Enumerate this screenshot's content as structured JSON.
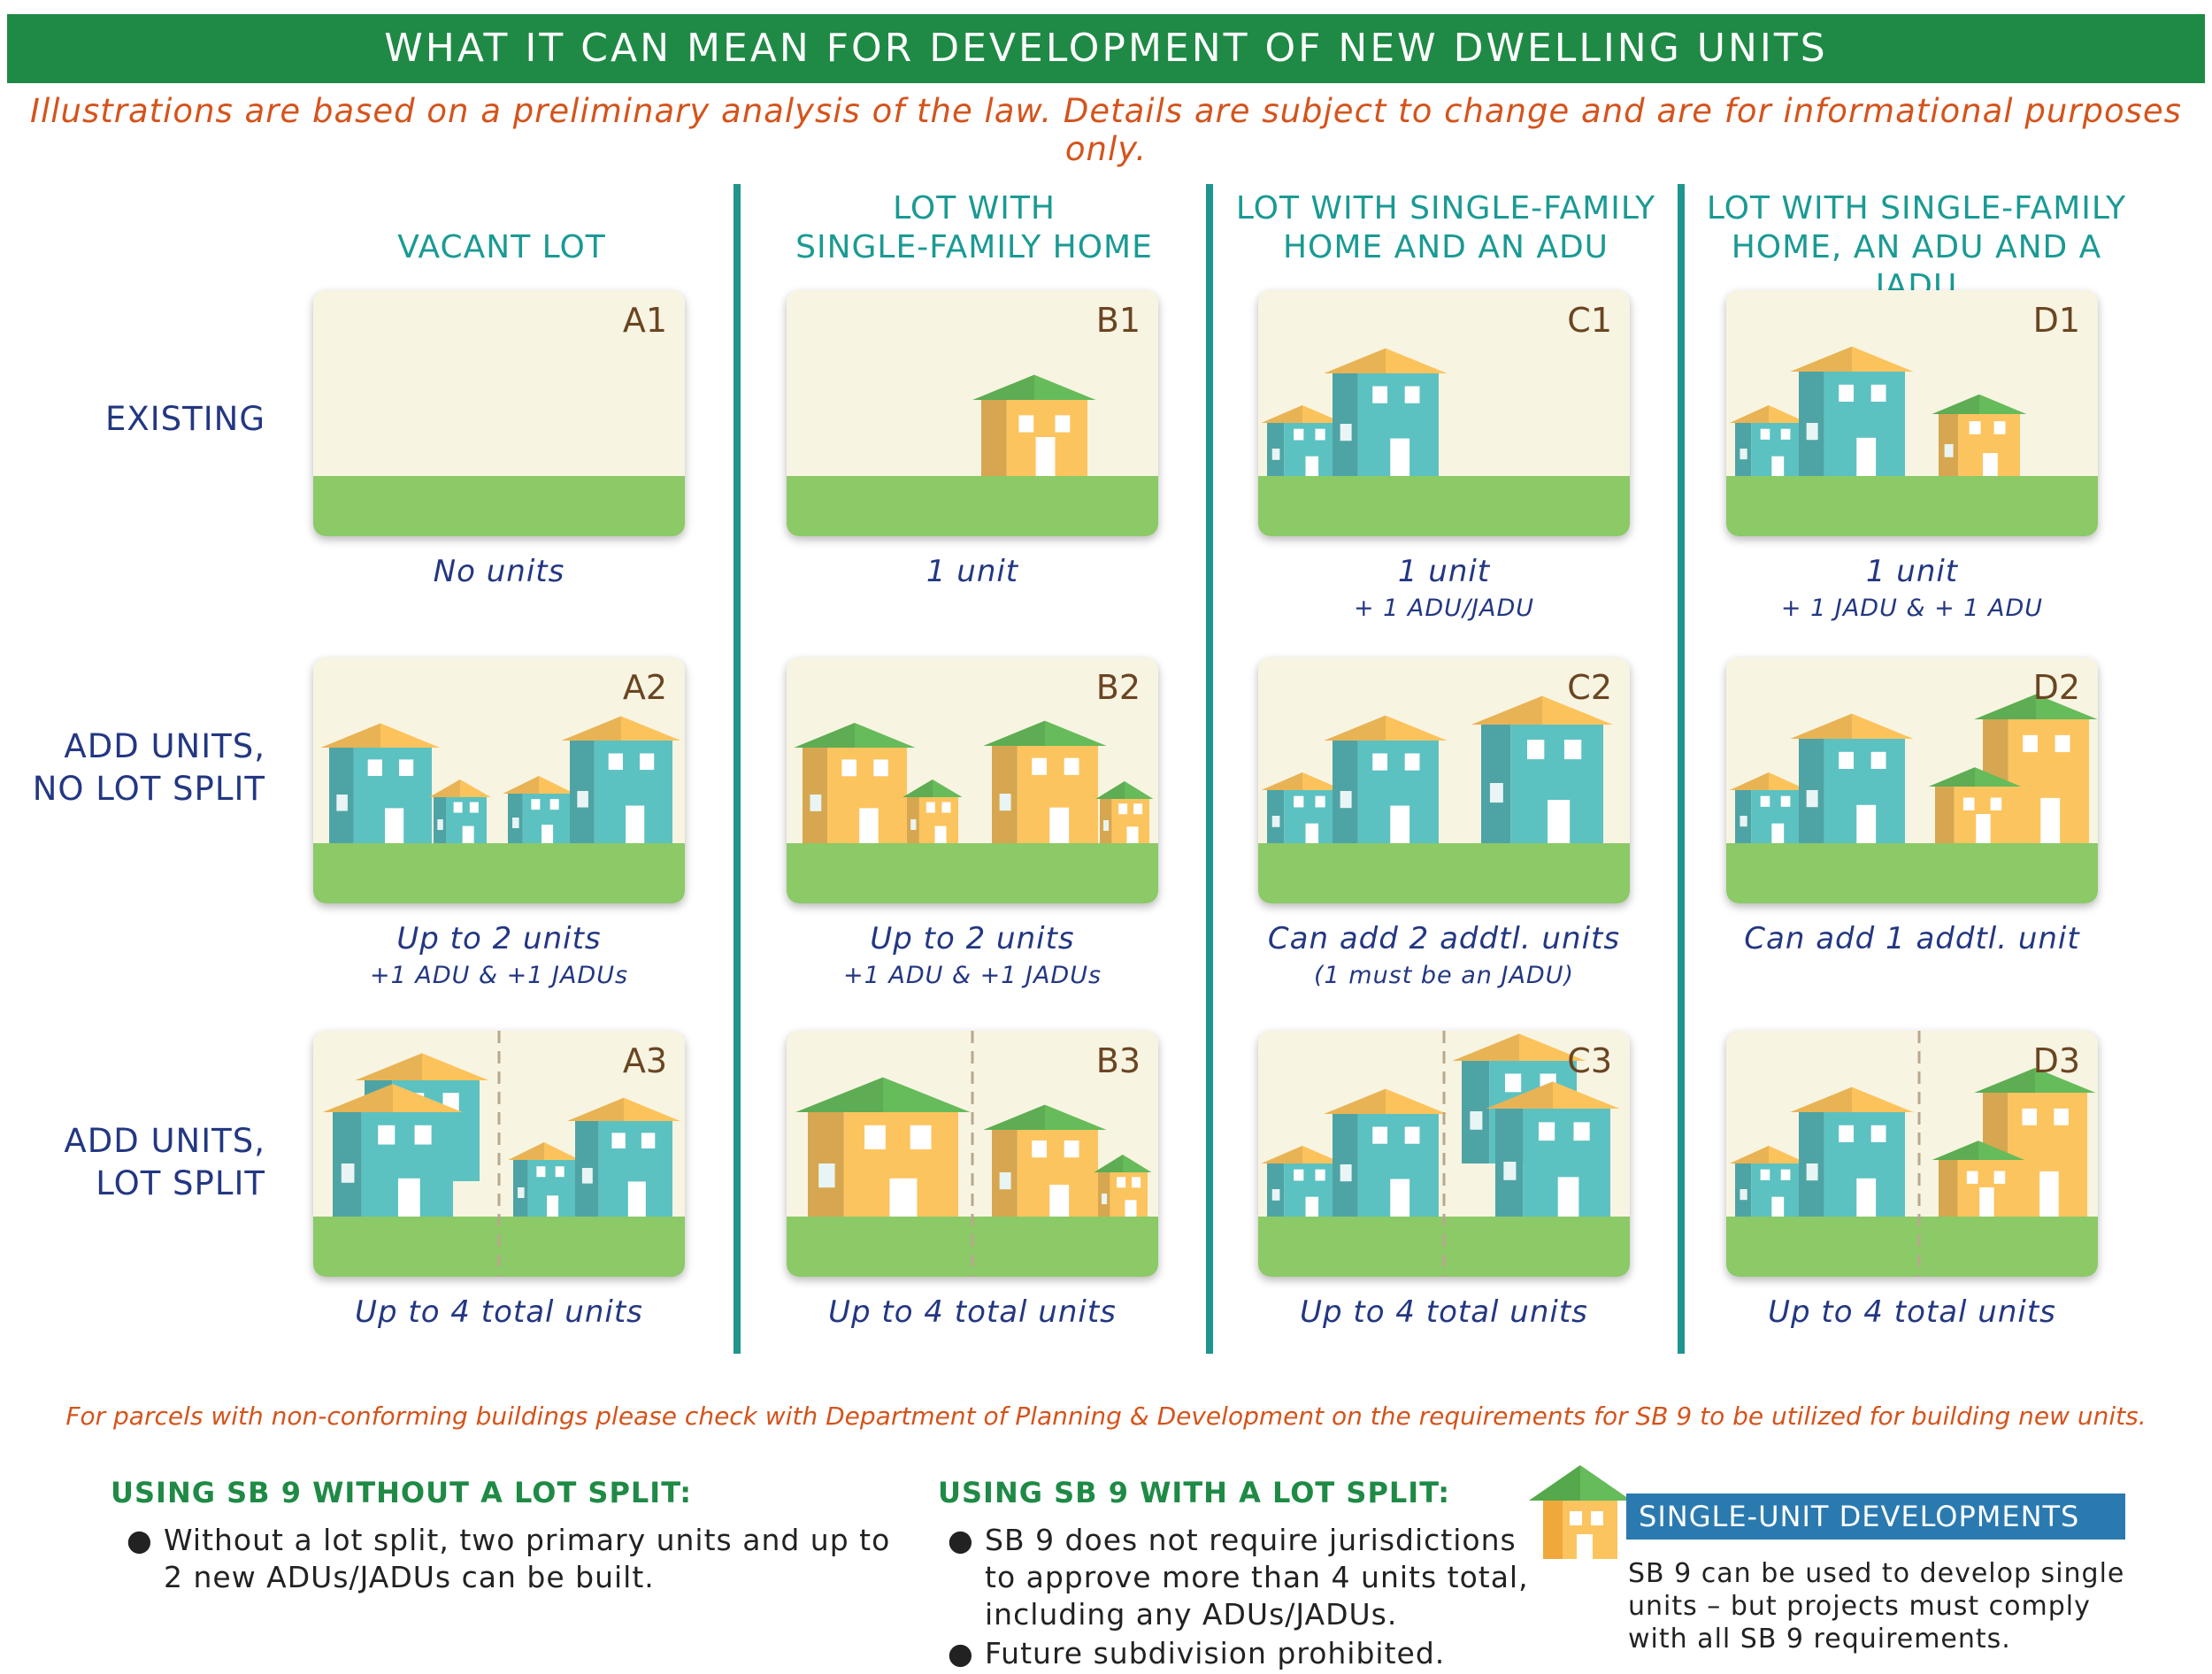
{
  "title": "WHAT IT CAN MEAN FOR DEVELOPMENT OF NEW DWELLING UNITS",
  "disclaimer": "Illustrations are based on a preliminary analysis of the law. Details are subject to change and are for informational purposes only.",
  "columns": [
    {
      "lines": [
        "VACANT LOT"
      ]
    },
    {
      "lines": [
        "LOT WITH",
        "SINGLE-FAMILY HOME"
      ]
    },
    {
      "lines": [
        "LOT WITH SINGLE-FAMILY",
        "HOME AND AN ADU"
      ]
    },
    {
      "lines": [
        "LOT WITH SINGLE-FAMILY",
        "HOME, AN ADU AND A JADU"
      ]
    }
  ],
  "rows": [
    {
      "lines": [
        "EXISTING"
      ]
    },
    {
      "lines": [
        "ADD UNITS,",
        "NO LOT SPLIT"
      ]
    },
    {
      "lines": [
        "ADD UNITS,",
        "LOT SPLIT"
      ]
    }
  ],
  "cards": {
    "A1": {
      "label": "A1",
      "caption": "No units",
      "sub": ""
    },
    "B1": {
      "label": "B1",
      "caption": "1 unit",
      "sub": ""
    },
    "C1": {
      "label": "C1",
      "caption": "1 unit",
      "sub": "+ 1 ADU/JADU"
    },
    "D1": {
      "label": "D1",
      "caption": "1 unit",
      "sub": "+ 1 JADU & + 1 ADU"
    },
    "A2": {
      "label": "A2",
      "caption": "Up to 2 units",
      "sub": "+1 ADU & +1 JADUs"
    },
    "B2": {
      "label": "B2",
      "caption": "Up to 2 units",
      "sub": "+1 ADU & +1 JADUs"
    },
    "C2": {
      "label": "C2",
      "caption": "Can add 2 addtl. units",
      "sub": "(1 must be an JADU)"
    },
    "D2": {
      "label": "D2",
      "caption": "Can add 1 addtl. unit",
      "sub": ""
    },
    "A3": {
      "label": "A3",
      "caption": "Up to 4 total units",
      "sub": ""
    },
    "B3": {
      "label": "B3",
      "caption": "Up to 4 total units",
      "sub": ""
    },
    "C3": {
      "label": "C3",
      "caption": "Up to 4 total units",
      "sub": ""
    },
    "D3": {
      "label": "D3",
      "caption": "Up to 4 total units",
      "sub": ""
    }
  },
  "footnote": "For parcels with non-conforming buildings please check with Department of Planning & Development on the requirements for SB 9 to be utilized for building new units.",
  "without_split": {
    "heading": "USING SB 9 WITHOUT A LOT SPLIT:",
    "bullets": [
      {
        "lines": [
          "Without a lot split, two primary units and up to",
          "2 new ADUs/JADUs can be built."
        ]
      }
    ]
  },
  "with_split": {
    "heading": "USING SB 9 WITH A LOT SPLIT:",
    "bullets": [
      {
        "lines": [
          "SB 9 does not require jurisdictions",
          "to approve more than 4 units total,",
          "including any ADUs/JADUs."
        ]
      },
      {
        "lines": [
          "Future subdivision prohibited."
        ]
      }
    ]
  },
  "single_unit": {
    "heading": "SINGLE-UNIT DEVELOPMENTS",
    "lines": [
      "SB 9 can be used to develop single",
      "units – but projects must comply",
      "with all SB 9 requirements."
    ]
  },
  "colors": {
    "banner": "#1f8a45",
    "accent_teal": "#1a9a94",
    "navy": "#233782",
    "orange": "#d4541c",
    "house_teal": "#5cc1c1",
    "house_orange": "#fcc45e",
    "roof_orange": "#fcc35c",
    "roof_green": "#66bb5a",
    "ground": "#8cc967",
    "sky": "#f8f4e2"
  }
}
